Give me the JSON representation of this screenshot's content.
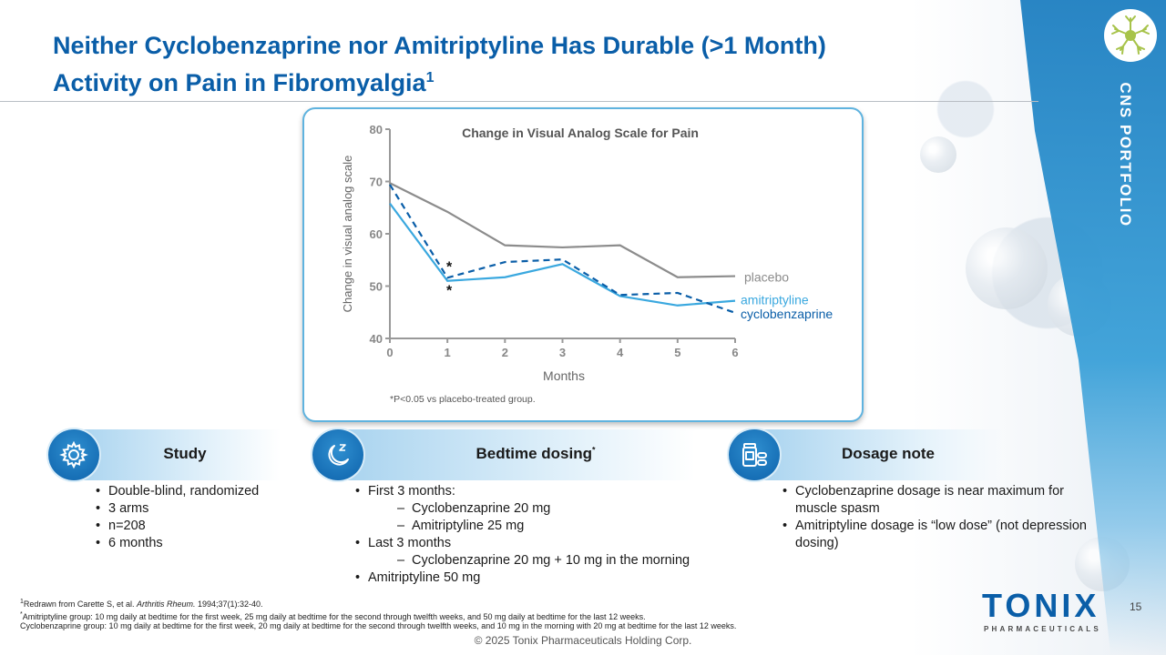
{
  "title": {
    "line1": "Neither Cyclobenzaprine nor Amitriptyline Has Durable (>1 Month)",
    "line2": "Activity on Pain in Fibromyalgia",
    "sup": "1"
  },
  "side": {
    "label": "CNS PORTFOLIO"
  },
  "chart_data": {
    "type": "line",
    "title": "Change in Visual Analog Scale for Pain",
    "xlabel": "Months",
    "ylabel": "Change in visual analog scale",
    "x": [
      0,
      1,
      2,
      3,
      4,
      5,
      6
    ],
    "xticks": [
      "0",
      "1",
      "2",
      "3",
      "4",
      "5",
      "6"
    ],
    "yticks": [
      "40",
      "50",
      "60",
      "70",
      "80"
    ],
    "xlim": [
      0,
      6
    ],
    "ylim": [
      40,
      80
    ],
    "grid": false,
    "series": [
      {
        "name": "placebo",
        "values": [
          69.7,
          64.2,
          57.8,
          57.4,
          57.8,
          51.7,
          51.9
        ],
        "color": "#8c8c8c",
        "style": "solid"
      },
      {
        "name": "amitriptyline",
        "values": [
          65.8,
          51.0,
          51.7,
          54.2,
          48.1,
          46.3,
          47.2
        ],
        "color": "#3aa8df",
        "style": "solid"
      },
      {
        "name": "cyclobenzaprine",
        "values": [
          69.4,
          51.6,
          54.6,
          55.1,
          48.3,
          48.7,
          44.9
        ],
        "color": "#0a5ea8",
        "style": "dashed"
      }
    ],
    "annotations": [
      {
        "text": "*",
        "x": 1,
        "y": 53.5
      },
      {
        "text": "*",
        "x": 1,
        "y": 49.0
      }
    ],
    "footnote": "*P<0.05 vs placebo-treated group."
  },
  "cards": [
    {
      "label": "Study",
      "icon": "gear-icon",
      "bullets": [
        {
          "text": "Double-blind, randomized",
          "level": 1
        },
        {
          "text": "3 arms",
          "level": 1
        },
        {
          "text": "n=208",
          "level": 1
        },
        {
          "text": "6 months",
          "level": 1
        }
      ]
    },
    {
      "label": "Bedtime dosing",
      "sup": "*",
      "icon": "moon-sleep-icon",
      "bullets": [
        {
          "text": "First 3 months:",
          "level": 1
        },
        {
          "text": "Cyclobenzaprine 20 mg",
          "level": 2
        },
        {
          "text": "Amitriptyline 25 mg",
          "level": 2
        },
        {
          "text": "Last 3 months",
          "level": 1
        },
        {
          "text": "Cyclobenzaprine 20 mg + 10 mg in the morning",
          "level": 2
        },
        {
          "text": "Amitriptyline 50 mg",
          "level": 1
        }
      ]
    },
    {
      "label": "Dosage note",
      "icon": "pill-bottle-icon",
      "bullets": [
        {
          "text": "Cyclobenzaprine dosage is near maximum for muscle spasm",
          "level": 1
        },
        {
          "text": "Amitriptyline dosage is “low dose” (not depression dosing)",
          "level": 1
        }
      ]
    }
  ],
  "footnotes": {
    "ref_sup": "1",
    "ref_pre": "Redrawn from Carette S, et al. ",
    "ref_journal": "Arthritis Rheum.",
    "ref_post": " 1994;37(1):32-40.",
    "ami_sup": "*",
    "ami": "Amitriptyline group: 10 mg daily at bedtime for the first week, 25 mg daily at bedtime for the second through twelfth weeks, and 50 mg daily at bedtime for the last 12 weeks.",
    "cyc": "Cyclobenzaprine group: 10 mg daily at bedtime for the first week, 20 mg daily at bedtime for the second through twelfth weeks, and 10 mg in the morning with 20 mg at bedtime for the last 12 weeks."
  },
  "page_number": "15",
  "copyright": "© 2025 Tonix Pharmaceuticals Holding Corp.",
  "logo": {
    "word": "TONIX",
    "sub": "PHARMACEUTICALS"
  }
}
